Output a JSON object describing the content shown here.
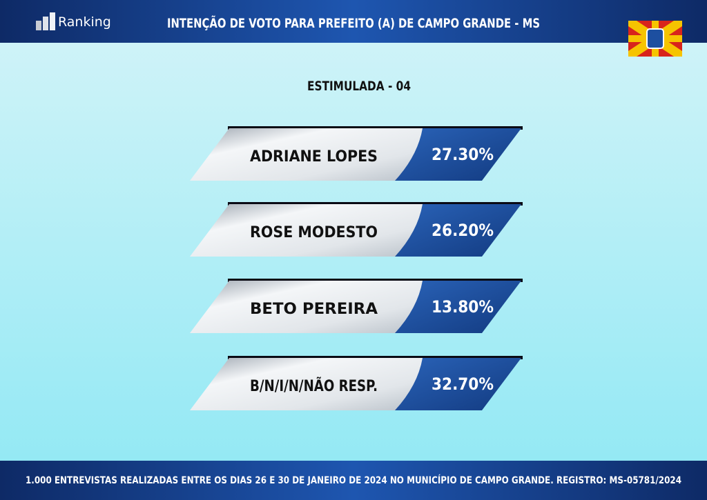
{
  "header": {
    "logo": "Ranking",
    "title": "INTENÇÃO DE VOTO PARA PREFEITO (A) DE CAMPO GRANDE - MS"
  },
  "subtitle": "ESTIMULADA - 04",
  "entries": [
    {
      "name": "ADRIANE LOPES",
      "value": "27.30%"
    },
    {
      "name": "ROSE MODESTO",
      "value": "26.20%"
    },
    {
      "name": "BETO PEREIRA",
      "value": "13.80%"
    },
    {
      "name": "B/N/I/N/NÃO RESP.",
      "value": "32.70%"
    }
  ],
  "footer": "1.000 ENTREVISTAS REALIZADAS ENTRE OS DIAS 26 E 30 DE JANEIRO DE 2024 NO MUNICÍPIO DE CAMPO GRANDE. REGISTRO: MS-05781/2024"
}
